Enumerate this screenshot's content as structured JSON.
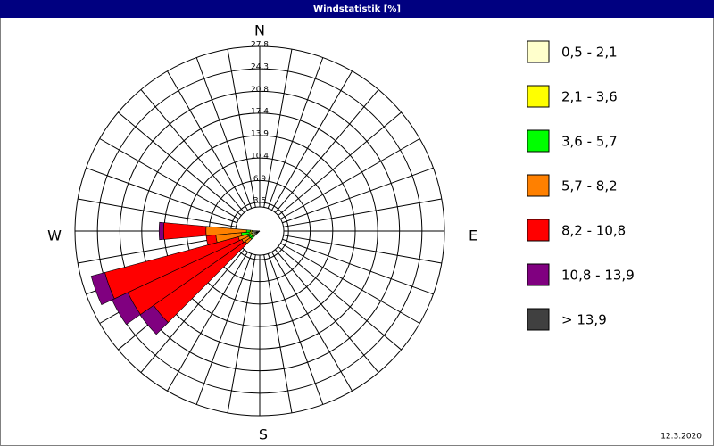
{
  "chart_data": {
    "type": "windrose",
    "title": "Windstatistik [%]",
    "directions": [
      230,
      240,
      250,
      260,
      270
    ],
    "series": [
      {
        "name": "0,5 - 2,1",
        "color": "#ffffcc",
        "values": [
          0.2,
          0.2,
          0.2,
          0.3,
          0.2
        ]
      },
      {
        "name": "2,1 - 3,6",
        "color": "#ffff00",
        "values": [
          0.2,
          0.2,
          0.3,
          0.4,
          0.3
        ]
      },
      {
        "name": "3,6 - 5,7",
        "color": "#00ff00",
        "values": [
          0.4,
          0.5,
          0.5,
          1.2,
          0.6
        ]
      },
      {
        "name": "5,7 - 8,2",
        "color": "#ff8000",
        "values": [
          1.0,
          1.2,
          1.5,
          4.0,
          6.3
        ]
      },
      {
        "name": "8,2 - 10,8",
        "color": "#ff0000",
        "values": [
          17.4,
          19.6,
          21.5,
          1.5,
          6.6
        ]
      },
      {
        "name": "10,8 - 13,9",
        "color": "#800080",
        "values": [
          2.6,
          2.7,
          2.2,
          0,
          0.7
        ]
      },
      {
        "name": "> 13,9",
        "color": "#404040",
        "values": [
          0,
          0,
          0,
          0,
          0
        ]
      }
    ],
    "rlim": [
      0,
      27.8
    ],
    "rticks": [
      {
        "value": 3.5,
        "label": "3,5"
      },
      {
        "value": 6.9,
        "label": "6,9"
      },
      {
        "value": 10.4,
        "label": "10,4"
      },
      {
        "value": 13.9,
        "label": "13,9"
      },
      {
        "value": 17.4,
        "label": "17,4"
      },
      {
        "value": 20.8,
        "label": "20,8"
      },
      {
        "value": 24.3,
        "label": "24,3"
      },
      {
        "value": 27.8,
        "label": "27,8"
      }
    ],
    "compass": [
      "N",
      "E",
      "S",
      "W"
    ],
    "date": "12.3.2020"
  }
}
